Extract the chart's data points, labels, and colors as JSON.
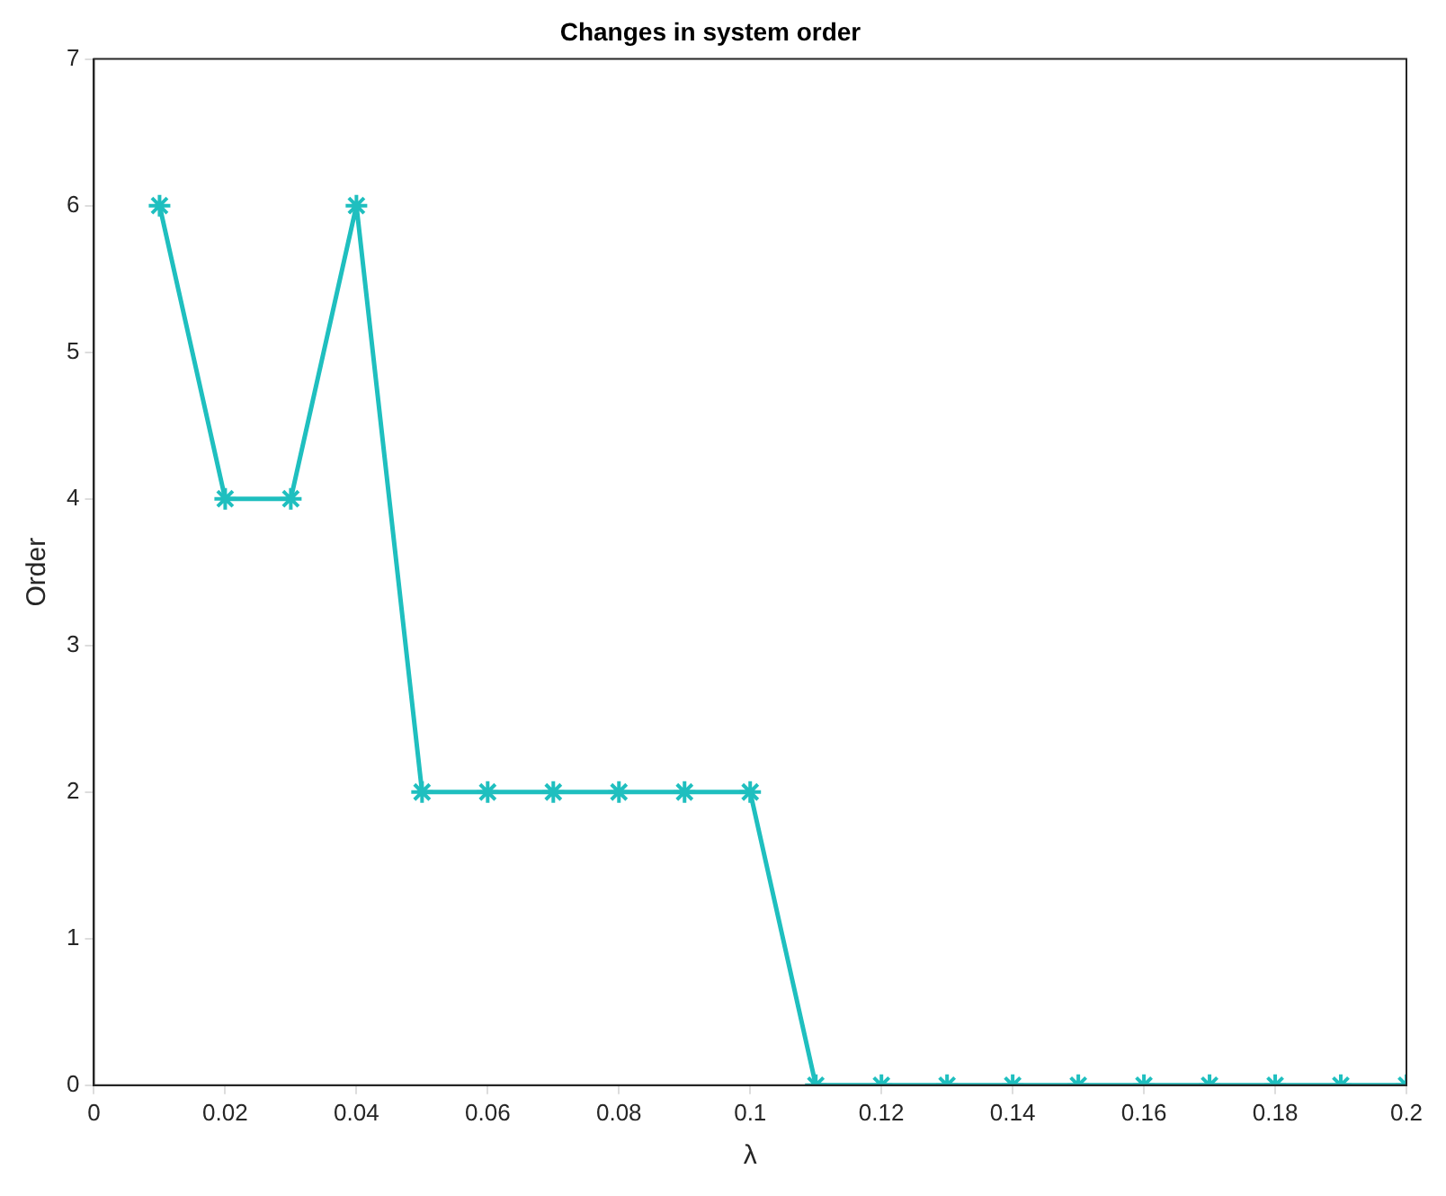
{
  "chart_data": {
    "type": "line",
    "title": "Changes in system order",
    "xlabel": "λ",
    "ylabel": "Order",
    "x": [
      0.01,
      0.02,
      0.03,
      0.04,
      0.05,
      0.06,
      0.07,
      0.08,
      0.09,
      0.1,
      0.11,
      0.12,
      0.13,
      0.14,
      0.15,
      0.16,
      0.17,
      0.18,
      0.19,
      0.2
    ],
    "series": [
      {
        "color": "#1fbfbf",
        "values": [
          6,
          4,
          4,
          6,
          2,
          2,
          2,
          2,
          2,
          2,
          0,
          0,
          0,
          0,
          0,
          0,
          0,
          0,
          0,
          0
        ]
      }
    ],
    "xlim": [
      0,
      0.2
    ],
    "xticks": [
      0,
      0.02,
      0.04,
      0.06,
      0.08,
      0.1,
      0.12,
      0.14,
      0.16,
      0.18,
      0.2
    ],
    "ylim": [
      0,
      7
    ],
    "yticks": [
      0,
      1,
      2,
      3,
      4,
      5,
      6,
      7
    ],
    "grid": false,
    "legend": false,
    "marker": "cross",
    "line_style": "solid"
  }
}
